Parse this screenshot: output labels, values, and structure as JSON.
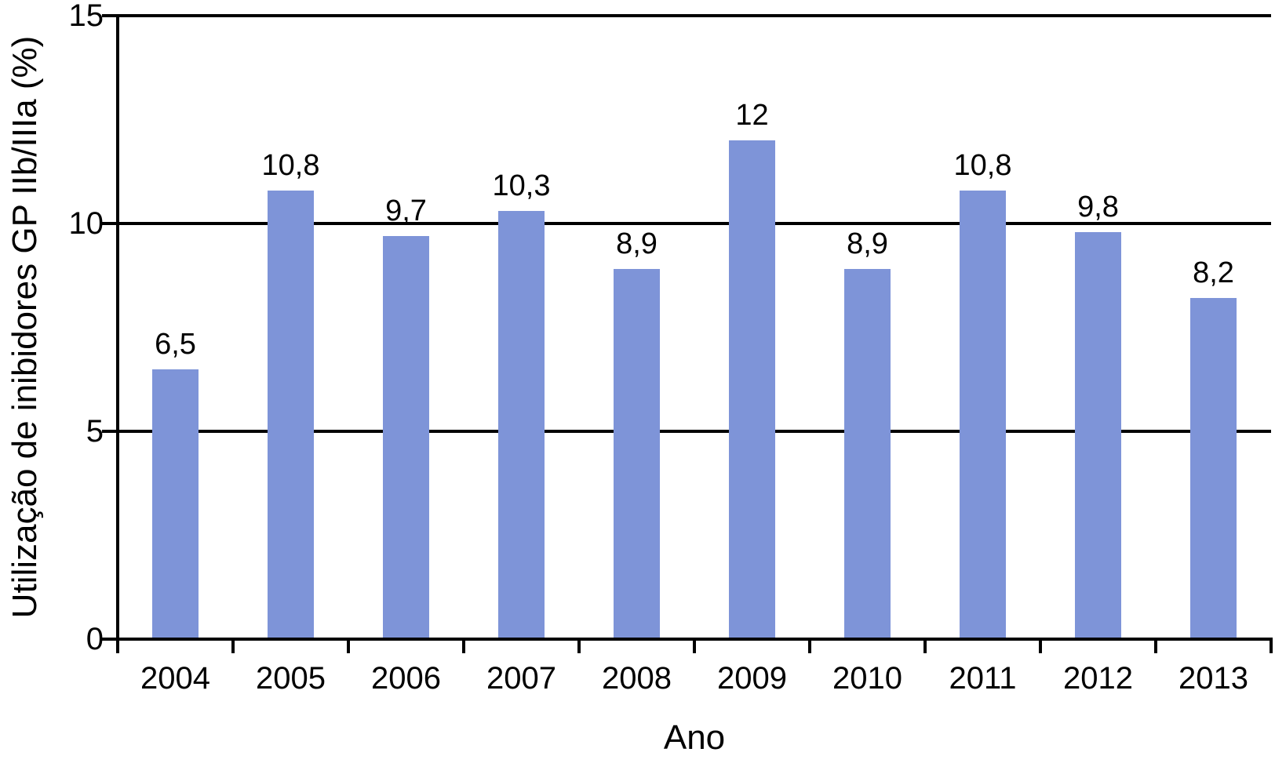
{
  "chart_data": {
    "type": "bar",
    "title": "",
    "xlabel": "Ano",
    "ylabel": "Utilização de inibidores GP IIb/IIIa (%)",
    "categories": [
      "2004",
      "2005",
      "2006",
      "2007",
      "2008",
      "2009",
      "2010",
      "2011",
      "2012",
      "2013"
    ],
    "values": [
      6.5,
      10.8,
      9.7,
      10.3,
      8.9,
      12,
      8.9,
      10.8,
      9.8,
      8.2
    ],
    "value_labels": [
      "6,5",
      "10,8",
      "9,7",
      "10,3",
      "8,9",
      "12",
      "8,9",
      "10,8",
      "9,8",
      "8,2"
    ],
    "ylim": [
      0,
      15
    ],
    "yticks": [
      0,
      5,
      10,
      15
    ],
    "ytick_labels": [
      "0",
      "5",
      "10",
      "15"
    ],
    "grid": true,
    "legend": false,
    "bar_color": "#7E94D8",
    "axis_color": "#000000",
    "text_color": "#000000"
  }
}
